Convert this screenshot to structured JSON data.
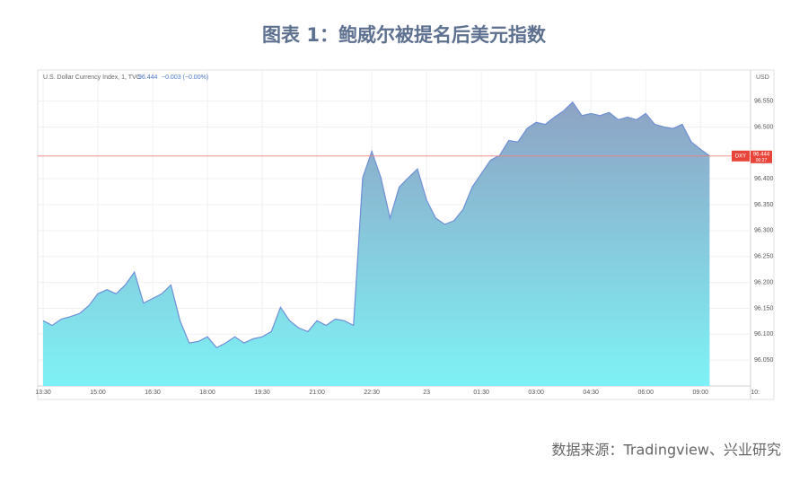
{
  "title": "图表 1：鲍威尔被提名后美元指数",
  "source": "数据来源：Tradingview、兴业研究",
  "chart_data": {
    "type": "area",
    "legend": "U.S. Dollar Currency Index, 1, TVC",
    "last_value_text": "96.444",
    "change_text": "−0.003 (−0.00%)",
    "currency": "USD",
    "price_label": {
      "symbol": "DXY",
      "value": 96.444,
      "label": "96.444",
      "time": "00:27"
    },
    "line_color": "#6f8fd6",
    "fill_top": "#8ea2c4",
    "fill_bottom": "#7ef2f6",
    "price_line_color": "#f08080",
    "grid": true,
    "categories": [
      "13:30",
      null,
      null,
      null,
      null,
      null,
      "15:00",
      null,
      null,
      null,
      null,
      null,
      "16:30",
      null,
      null,
      null,
      null,
      null,
      "18:00",
      null,
      null,
      null,
      null,
      null,
      "19:30",
      null,
      null,
      null,
      null,
      null,
      "21:00",
      null,
      null,
      null,
      null,
      null,
      "22:30",
      null,
      null,
      null,
      null,
      null,
      "23",
      null,
      null,
      null,
      null,
      null,
      "01:30",
      null,
      null,
      null,
      null,
      null,
      "03:00",
      null,
      null,
      null,
      null,
      null,
      "04:30",
      null,
      null,
      null,
      null,
      null,
      "06:00",
      null,
      null,
      null,
      null,
      null,
      "09:00",
      null,
      null,
      null,
      null,
      null,
      "10:"
    ],
    "values": [
      96.126,
      96.117,
      96.129,
      96.134,
      96.14,
      96.155,
      96.178,
      96.186,
      96.178,
      96.195,
      96.22,
      96.16,
      96.169,
      96.178,
      96.195,
      96.126,
      96.083,
      96.086,
      96.095,
      96.074,
      96.083,
      96.095,
      96.083,
      96.091,
      96.095,
      96.105,
      96.152,
      96.126,
      96.112,
      96.105,
      96.126,
      96.117,
      96.129,
      96.126,
      96.117,
      96.402,
      96.453,
      96.402,
      96.324,
      96.384,
      96.402,
      96.419,
      96.359,
      96.324,
      96.312,
      96.319,
      96.341,
      96.384,
      96.41,
      96.436,
      96.445,
      96.474,
      96.471,
      96.497,
      96.509,
      96.505,
      96.519,
      96.531,
      96.548,
      96.522,
      96.526,
      96.522,
      96.528,
      96.514,
      96.519,
      96.514,
      96.526,
      96.505,
      96.5,
      96.497,
      96.505,
      96.471,
      96.457,
      96.444,
      null,
      null,
      null,
      null,
      null
    ],
    "ylim": [
      96.0,
      96.61
    ],
    "yticks": [
      {
        "value": 96.05,
        "label": "96.050"
      },
      {
        "value": 96.1,
        "label": "96.100"
      },
      {
        "value": 96.15,
        "label": "96.150"
      },
      {
        "value": 96.2,
        "label": "96.200"
      },
      {
        "value": 96.25,
        "label": "96.250"
      },
      {
        "value": 96.3,
        "label": "96.300"
      },
      {
        "value": 96.35,
        "label": "96.350"
      },
      {
        "value": 96.4,
        "label": "96.400"
      },
      {
        "value": 96.5,
        "label": "96.500"
      },
      {
        "value": 96.55,
        "label": "96.550"
      }
    ]
  }
}
